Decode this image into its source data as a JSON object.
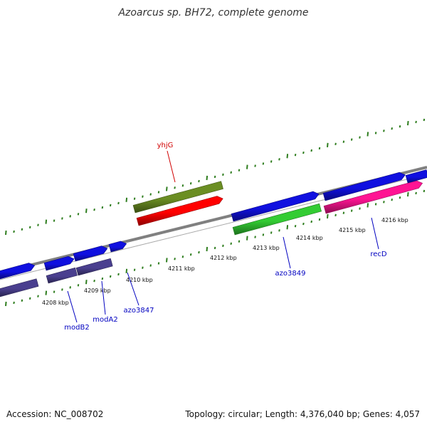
{
  "title": "Azoarcus sp. BH72, complete genome",
  "footer": {
    "accession": "Accession: NC_008702",
    "stats": "Topology: circular; Length: 4,376,040 bp; Genes: 4,057"
  },
  "colors": {
    "background": "#ffffff",
    "backbone": "#808080",
    "ticks": "#2e7d1e",
    "cds_forward": "#1010e0",
    "cds_reverse": "#4a3f8f",
    "label_red": "#d00000",
    "label_blue": "#0000c0",
    "gene_olive": "#6b8e23",
    "gene_red": "#ff0000",
    "gene_green": "#33cc33",
    "gene_magenta": "#ff1493"
  },
  "position_labels": [
    "4208 kbp",
    "4209 kbp",
    "4210 kbp",
    "4211 kbp",
    "4212 kbp",
    "4213 kbp",
    "4214 kbp",
    "4215 kbp",
    "4216 kbp"
  ],
  "gene_labels": [
    {
      "text": "yhjG",
      "color": "red"
    },
    {
      "text": "modB2",
      "color": "blue"
    },
    {
      "text": "modA2",
      "color": "blue"
    },
    {
      "text": "azo3847",
      "color": "blue"
    },
    {
      "text": "azo3849",
      "color": "blue"
    },
    {
      "text": "recD",
      "color": "blue"
    }
  ]
}
